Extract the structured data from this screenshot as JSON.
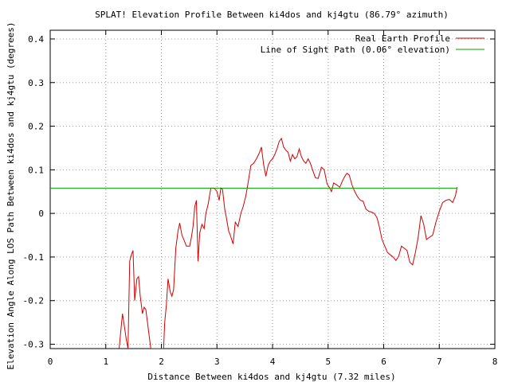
{
  "chart_data": {
    "type": "line",
    "title": "SPLAT! Elevation Profile Between ki4dos and kj4gtu (86.79° azimuth)",
    "xlabel": "Distance Between ki4dos and kj4gtu (7.32 miles)",
    "ylabel": "Elevation Angle Along LOS Path Between ki4dos and kj4gtu (degrees)",
    "xlim": [
      0,
      8
    ],
    "ylim": [
      -0.31,
      0.42
    ],
    "x_ticks": [
      0,
      1,
      2,
      3,
      4,
      5,
      6,
      7,
      8
    ],
    "x_tick_labels": [
      "0",
      "1",
      "2",
      "3",
      "4",
      "5",
      "6",
      "7",
      "8"
    ],
    "y_ticks": [
      -0.3,
      -0.2,
      -0.1,
      0,
      0.1,
      0.2,
      0.3,
      0.4
    ],
    "y_tick_labels": [
      "-0.3",
      "-0.2",
      "-0.1",
      "0",
      "0.1",
      "0.2",
      "0.3",
      "0.4"
    ],
    "grid": true,
    "legend_position": "top-right",
    "series": [
      {
        "name": "Real Earth Profile",
        "color": "#d40000",
        "points": [
          [
            1.24,
            -0.31
          ],
          [
            1.27,
            -0.27
          ],
          [
            1.3,
            -0.23
          ],
          [
            1.33,
            -0.255
          ],
          [
            1.37,
            -0.29
          ],
          [
            1.4,
            -0.31
          ],
          [
            1.43,
            -0.11
          ],
          [
            1.46,
            -0.095
          ],
          [
            1.49,
            -0.085
          ],
          [
            1.52,
            -0.2
          ],
          [
            1.56,
            -0.15
          ],
          [
            1.59,
            -0.145
          ],
          [
            1.62,
            -0.19
          ],
          [
            1.66,
            -0.23
          ],
          [
            1.69,
            -0.215
          ],
          [
            1.72,
            -0.22
          ],
          [
            1.75,
            -0.25
          ],
          [
            1.78,
            -0.28
          ],
          [
            1.81,
            -0.31
          ],
          [
            2.04,
            -0.31
          ],
          [
            2.06,
            -0.25
          ],
          [
            2.09,
            -0.21
          ],
          [
            2.12,
            -0.15
          ],
          [
            2.16,
            -0.18
          ],
          [
            2.19,
            -0.19
          ],
          [
            2.22,
            -0.175
          ],
          [
            2.26,
            -0.08
          ],
          [
            2.3,
            -0.04
          ],
          [
            2.33,
            -0.022
          ],
          [
            2.37,
            -0.05
          ],
          [
            2.41,
            -0.062
          ],
          [
            2.45,
            -0.075
          ],
          [
            2.51,
            -0.075
          ],
          [
            2.54,
            -0.055
          ],
          [
            2.57,
            -0.03
          ],
          [
            2.6,
            0.015
          ],
          [
            2.63,
            0.03
          ],
          [
            2.66,
            -0.11
          ],
          [
            2.69,
            -0.045
          ],
          [
            2.73,
            -0.025
          ],
          [
            2.77,
            -0.035
          ],
          [
            2.8,
            0.0
          ],
          [
            2.84,
            0.02
          ],
          [
            2.89,
            0.058
          ],
          [
            2.95,
            0.058
          ],
          [
            3.0,
            0.05
          ],
          [
            3.04,
            0.03
          ],
          [
            3.07,
            0.058
          ],
          [
            3.1,
            0.055
          ],
          [
            3.14,
            0.01
          ],
          [
            3.17,
            -0.01
          ],
          [
            3.21,
            -0.04
          ],
          [
            3.24,
            -0.05
          ],
          [
            3.29,
            -0.07
          ],
          [
            3.33,
            -0.02
          ],
          [
            3.38,
            -0.03
          ],
          [
            3.43,
            0.0
          ],
          [
            3.47,
            0.015
          ],
          [
            3.52,
            0.04
          ],
          [
            3.56,
            0.07
          ],
          [
            3.61,
            0.11
          ],
          [
            3.66,
            0.115
          ],
          [
            3.71,
            0.125
          ],
          [
            3.76,
            0.138
          ],
          [
            3.8,
            0.152
          ],
          [
            3.84,
            0.112
          ],
          [
            3.88,
            0.085
          ],
          [
            3.92,
            0.11
          ],
          [
            3.96,
            0.12
          ],
          [
            4.0,
            0.125
          ],
          [
            4.04,
            0.135
          ],
          [
            4.08,
            0.148
          ],
          [
            4.12,
            0.165
          ],
          [
            4.16,
            0.172
          ],
          [
            4.2,
            0.152
          ],
          [
            4.24,
            0.145
          ],
          [
            4.28,
            0.14
          ],
          [
            4.32,
            0.12
          ],
          [
            4.36,
            0.135
          ],
          [
            4.4,
            0.125
          ],
          [
            4.44,
            0.13
          ],
          [
            4.48,
            0.148
          ],
          [
            4.52,
            0.13
          ],
          [
            4.56,
            0.12
          ],
          [
            4.6,
            0.115
          ],
          [
            4.64,
            0.125
          ],
          [
            4.68,
            0.115
          ],
          [
            4.72,
            0.1
          ],
          [
            4.77,
            0.082
          ],
          [
            4.82,
            0.08
          ],
          [
            4.88,
            0.106
          ],
          [
            4.93,
            0.1
          ],
          [
            4.98,
            0.068
          ],
          [
            5.02,
            0.06
          ],
          [
            5.06,
            0.05
          ],
          [
            5.1,
            0.07
          ],
          [
            5.16,
            0.065
          ],
          [
            5.21,
            0.06
          ],
          [
            5.26,
            0.075
          ],
          [
            5.3,
            0.085
          ],
          [
            5.34,
            0.092
          ],
          [
            5.38,
            0.088
          ],
          [
            5.43,
            0.065
          ],
          [
            5.48,
            0.05
          ],
          [
            5.53,
            0.038
          ],
          [
            5.58,
            0.03
          ],
          [
            5.63,
            0.028
          ],
          [
            5.68,
            0.01
          ],
          [
            5.73,
            0.005
          ],
          [
            5.78,
            0.003
          ],
          [
            5.83,
            0.0
          ],
          [
            5.88,
            -0.01
          ],
          [
            5.92,
            -0.03
          ],
          [
            5.97,
            -0.06
          ],
          [
            6.02,
            -0.075
          ],
          [
            6.07,
            -0.09
          ],
          [
            6.12,
            -0.095
          ],
          [
            6.17,
            -0.1
          ],
          [
            6.22,
            -0.108
          ],
          [
            6.27,
            -0.098
          ],
          [
            6.32,
            -0.075
          ],
          [
            6.37,
            -0.08
          ],
          [
            6.42,
            -0.085
          ],
          [
            6.47,
            -0.112
          ],
          [
            6.52,
            -0.118
          ],
          [
            6.57,
            -0.09
          ],
          [
            6.62,
            -0.055
          ],
          [
            6.67,
            -0.005
          ],
          [
            6.72,
            -0.025
          ],
          [
            6.77,
            -0.06
          ],
          [
            6.82,
            -0.055
          ],
          [
            6.88,
            -0.05
          ],
          [
            6.94,
            -0.02
          ],
          [
            7.0,
            0.005
          ],
          [
            7.06,
            0.025
          ],
          [
            7.12,
            0.03
          ],
          [
            7.18,
            0.032
          ],
          [
            7.24,
            0.025
          ],
          [
            7.29,
            0.04
          ],
          [
            7.32,
            0.06
          ]
        ]
      },
      {
        "name": "Line of Sight Path (0.06° elevation)",
        "color": "#00a000",
        "points": [
          [
            0,
            0.058
          ],
          [
            7.32,
            0.058
          ]
        ]
      }
    ]
  }
}
